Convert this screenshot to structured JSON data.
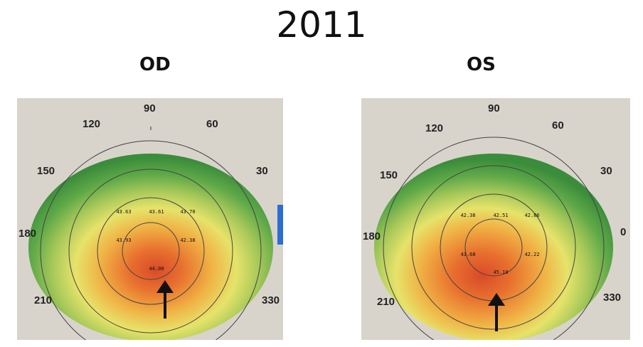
{
  "title": "2011",
  "eyes": [
    {
      "label": "OD",
      "degree_labels": [
        "90",
        "120",
        "60",
        "150",
        "30",
        "180",
        "210",
        "330"
      ],
      "center_values": [
        "43.63",
        "43.61",
        "43.70",
        "43.93",
        "44.00",
        "42.38"
      ]
    },
    {
      "label": "OS",
      "degree_labels": [
        "90",
        "120",
        "60",
        "150",
        "30",
        "180",
        "0",
        "210",
        "330"
      ],
      "center_values": [
        "42.38",
        "42.51",
        "42.86",
        "43.68",
        "45.10",
        "42.22"
      ]
    }
  ]
}
